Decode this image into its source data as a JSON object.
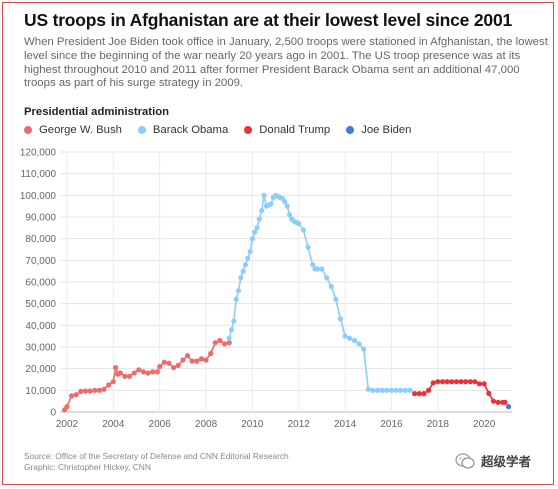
{
  "header": {
    "title": "US troops in Afghanistan are at their lowest level since 2001",
    "subtitle": "When President Joe Biden took office in January, 2,500 troops were stationed in Afghanistan, the lowest level since the beginning of the war nearly 20 years ago in 2001. The US troop presence was at its highest throughout 2010 and 2011 after former President Barack Obama sent an additional 47,000 troops as part of his surge strategy in 2009."
  },
  "legend": {
    "title": "Presidential administration",
    "items": [
      {
        "label": "George W. Bush",
        "color": "#ee6b6b"
      },
      {
        "label": "Barack Obama",
        "color": "#8ecdf7"
      },
      {
        "label": "Donald Trump",
        "color": "#e8323a"
      },
      {
        "label": "Joe Biden",
        "color": "#4a78d8"
      }
    ]
  },
  "footer": {
    "source": "Source: Office of the Secretary of Defense and CNN Editorial Research",
    "graphic": "Graphic: Christopher Hickey, CNN",
    "watermark": "超级学者"
  },
  "chart_data": {
    "type": "line",
    "title": "",
    "xlabel": "",
    "ylabel": "",
    "xlim": [
      2001.7,
      2021.2
    ],
    "ylim": [
      0,
      120000
    ],
    "x_ticks": [
      2002,
      2004,
      2006,
      2008,
      2010,
      2012,
      2014,
      2016,
      2018,
      2020
    ],
    "y_ticks": [
      0,
      10000,
      20000,
      30000,
      40000,
      50000,
      60000,
      70000,
      80000,
      90000,
      100000,
      110000,
      120000
    ],
    "y_tick_labels": [
      "0",
      "10,000",
      "20,000",
      "30,000",
      "40,000",
      "50,000",
      "60,000",
      "70,000",
      "80,000",
      "90,000",
      "100,000",
      "110,000",
      "120,000"
    ],
    "grid": true,
    "series": [
      {
        "name": "George W. Bush",
        "color": "#ee6b6b",
        "x": [
          2001.9,
          2002.0,
          2002.2,
          2002.4,
          2002.6,
          2002.8,
          2003.0,
          2003.2,
          2003.4,
          2003.6,
          2003.8,
          2004.0,
          2004.1,
          2004.2,
          2004.3,
          2004.5,
          2004.7,
          2004.9,
          2005.1,
          2005.3,
          2005.5,
          2005.7,
          2005.9,
          2006.0,
          2006.2,
          2006.4,
          2006.6,
          2006.8,
          2007.0,
          2007.2,
          2007.4,
          2007.6,
          2007.8,
          2008.0,
          2008.2,
          2008.4,
          2008.6,
          2008.8,
          2009.0
        ],
        "y": [
          1000,
          2500,
          7500,
          8000,
          9500,
          9700,
          9700,
          10000,
          10000,
          10500,
          12500,
          14000,
          20500,
          17500,
          18000,
          16500,
          16500,
          18000,
          19500,
          18500,
          18000,
          18500,
          18500,
          21000,
          23000,
          22500,
          20500,
          21500,
          24000,
          26000,
          23500,
          23500,
          24500,
          24000,
          27000,
          32000,
          33000,
          31500,
          32000
        ]
      },
      {
        "name": "Barack Obama",
        "color": "#8ecdf7",
        "x": [
          2009.0,
          2009.1,
          2009.2,
          2009.3,
          2009.4,
          2009.5,
          2009.6,
          2009.7,
          2009.8,
          2009.9,
          2010.0,
          2010.1,
          2010.2,
          2010.3,
          2010.4,
          2010.5,
          2010.6,
          2010.7,
          2010.8,
          2010.9,
          2011.0,
          2011.1,
          2011.2,
          2011.3,
          2011.4,
          2011.5,
          2011.6,
          2011.7,
          2011.8,
          2011.9,
          2012.0,
          2012.2,
          2012.4,
          2012.6,
          2012.7,
          2012.8,
          2013.0,
          2013.2,
          2013.4,
          2013.6,
          2013.8,
          2014.0,
          2014.2,
          2014.4,
          2014.6,
          2014.8,
          2015.0,
          2015.2,
          2015.4,
          2015.6,
          2015.8,
          2016.0,
          2016.2,
          2016.4,
          2016.6,
          2016.8
        ],
        "y": [
          34000,
          38000,
          42000,
          52000,
          56000,
          62000,
          65000,
          68000,
          71000,
          74000,
          80000,
          83000,
          85000,
          89000,
          93000,
          100000,
          95000,
          95500,
          96000,
          99000,
          100000,
          99500,
          99000,
          98500,
          97000,
          95000,
          91000,
          89000,
          88000,
          87500,
          87000,
          84000,
          76000,
          68000,
          66000,
          66000,
          66000,
          62000,
          58000,
          52000,
          43000,
          35000,
          34000,
          33000,
          31500,
          29000,
          10500,
          10000,
          10000,
          10000,
          10000,
          10000,
          10000,
          10000,
          10000,
          10000
        ]
      },
      {
        "name": "Donald Trump",
        "color": "#e8323a",
        "x": [
          2017.0,
          2017.2,
          2017.4,
          2017.6,
          2017.8,
          2018.0,
          2018.2,
          2018.4,
          2018.6,
          2018.8,
          2019.0,
          2019.2,
          2019.4,
          2019.6,
          2019.8,
          2020.0,
          2020.2,
          2020.4,
          2020.6,
          2020.8,
          2020.9
        ],
        "y": [
          8500,
          8500,
          8500,
          10000,
          13500,
          14000,
          14000,
          14000,
          14000,
          14000,
          14000,
          14000,
          14000,
          14000,
          13000,
          13000,
          8600,
          5000,
          4500,
          4500,
          4500
        ]
      },
      {
        "name": "Joe Biden",
        "color": "#4a78d8",
        "x": [
          2021.05
        ],
        "y": [
          2500
        ]
      }
    ]
  }
}
